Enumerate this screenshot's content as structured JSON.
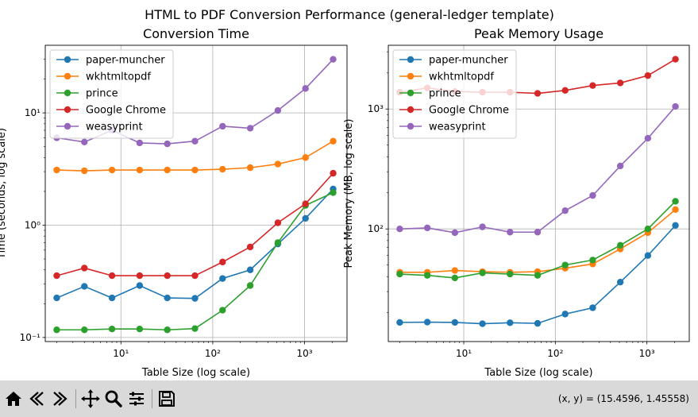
{
  "figure": {
    "suptitle": "HTML to PDF Conversion Performance (general-ledger template)"
  },
  "chart_data": [
    {
      "type": "line",
      "title": "Conversion Time",
      "xlabel": "Table Size (log scale)",
      "ylabel": "Time (seconds, log scale)",
      "xscale": "log",
      "yscale": "log",
      "xlim": [
        1.5,
        2900
      ],
      "ylim": [
        0.092,
        40
      ],
      "grid": true,
      "legend_position": "top-left",
      "x": [
        2,
        4,
        8,
        16,
        32,
        64,
        128,
        256,
        512,
        1024,
        2048
      ],
      "xticks": [
        {
          "value": 10,
          "label": "10¹"
        },
        {
          "value": 100,
          "label": "10²"
        },
        {
          "value": 1000,
          "label": "10³"
        }
      ],
      "yticks": [
        {
          "value": 0.1,
          "label": "10⁻¹"
        },
        {
          "value": 1,
          "label": "10⁰"
        },
        {
          "value": 10,
          "label": "10¹"
        }
      ],
      "series": [
        {
          "name": "paper-muncher",
          "color": "#1f77b4",
          "values": [
            0.225,
            0.285,
            0.225,
            0.29,
            0.225,
            0.223,
            0.335,
            0.4,
            0.68,
            1.15,
            2.1
          ]
        },
        {
          "name": "wkhtmltopdf",
          "color": "#ff7f0e",
          "values": [
            3.1,
            3.05,
            3.1,
            3.1,
            3.1,
            3.1,
            3.15,
            3.25,
            3.5,
            4.0,
            5.6
          ]
        },
        {
          "name": "prince",
          "color": "#2ca02c",
          "values": [
            0.117,
            0.117,
            0.119,
            0.119,
            0.117,
            0.12,
            0.175,
            0.29,
            0.7,
            1.5,
            1.95
          ]
        },
        {
          "name": "Google Chrome",
          "color": "#d62728",
          "values": [
            0.355,
            0.415,
            0.355,
            0.355,
            0.355,
            0.355,
            0.47,
            0.64,
            1.05,
            1.55,
            2.9
          ]
        },
        {
          "name": "weasyprint",
          "color": "#9467bd",
          "values": [
            6.0,
            5.5,
            7.0,
            5.4,
            5.3,
            5.6,
            7.6,
            7.3,
            10.5,
            16.5,
            30.0
          ]
        }
      ]
    },
    {
      "type": "line",
      "title": "Peak Memory Usage",
      "xlabel": "Table Size (log scale)",
      "ylabel": "Peak Memory (MB, log scale)",
      "xscale": "log",
      "yscale": "log",
      "xlim": [
        1.5,
        2900
      ],
      "ylim": [
        11.5,
        3400
      ],
      "grid": true,
      "legend_position": "top-left",
      "x": [
        2,
        4,
        8,
        16,
        32,
        64,
        128,
        256,
        512,
        1024,
        2048
      ],
      "xticks": [
        {
          "value": 10,
          "label": "10¹"
        },
        {
          "value": 100,
          "label": "10²"
        },
        {
          "value": 1000,
          "label": "10³"
        }
      ],
      "yticks": [
        {
          "value": 100,
          "label": "10²"
        },
        {
          "value": 1000,
          "label": "10³"
        }
      ],
      "series": [
        {
          "name": "paper-muncher",
          "color": "#1f77b4",
          "values": [
            16.6,
            16.7,
            16.6,
            16.2,
            16.5,
            16.3,
            19.5,
            22,
            36,
            60,
            107
          ]
        },
        {
          "name": "wkhtmltopdf",
          "color": "#ff7f0e",
          "values": [
            43.5,
            43.5,
            45,
            44,
            43.5,
            44,
            47,
            51,
            68,
            93,
            145
          ]
        },
        {
          "name": "prince",
          "color": "#2ca02c",
          "values": [
            42,
            41,
            39,
            43,
            42,
            41,
            50,
            55,
            73,
            100,
            170
          ]
        },
        {
          "name": "Google Chrome",
          "color": "#d62728",
          "values": [
            1380,
            1500,
            1400,
            1380,
            1380,
            1350,
            1430,
            1570,
            1650,
            1900,
            2600
          ]
        },
        {
          "name": "weasyprint",
          "color": "#9467bd",
          "values": [
            100,
            102,
            93,
            104,
            94,
            94,
            142,
            190,
            335,
            570,
            1050
          ]
        }
      ]
    }
  ],
  "toolbar": {
    "buttons": [
      {
        "name": "home-icon",
        "symbol": "home"
      },
      {
        "name": "back-icon",
        "symbol": "back"
      },
      {
        "name": "forward-icon",
        "symbol": "forward"
      },
      {
        "name": "pan-icon",
        "symbol": "pan"
      },
      {
        "name": "zoom-icon",
        "symbol": "zoom"
      },
      {
        "name": "configure-subplots-icon",
        "symbol": "sliders"
      },
      {
        "name": "save-icon",
        "symbol": "save"
      }
    ],
    "coordinates": "(x, y) = (15.4596, 1.45558)"
  }
}
